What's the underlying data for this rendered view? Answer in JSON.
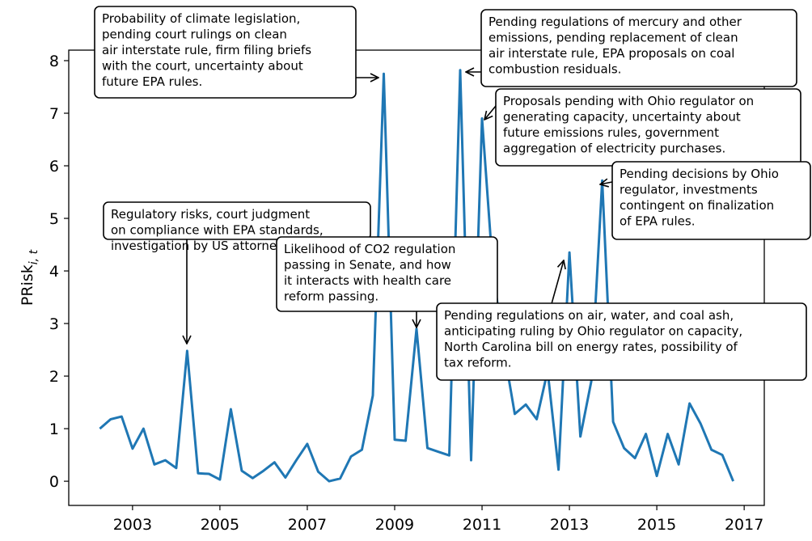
{
  "chart_data": {
    "type": "line",
    "y_label": "PRisk",
    "y_label_sub": "i, t",
    "xlim": [
      2001.54,
      2017.46
    ],
    "xticks": [
      2003,
      2005,
      2007,
      2009,
      2011,
      2013,
      2015,
      2017
    ],
    "ylim": [
      -0.46,
      8.2
    ],
    "yticks": [
      0,
      1,
      2,
      3,
      4,
      5,
      6,
      7,
      8
    ],
    "series": [
      {
        "color": "#1f77b4",
        "x": [
          2002.25,
          2002.5,
          2002.75,
          2003,
          2003.25,
          2003.5,
          2003.75,
          2004,
          2004.25,
          2004.5,
          2004.75,
          2005,
          2005.25,
          2005.5,
          2005.75,
          2006,
          2006.25,
          2006.5,
          2006.75,
          2007,
          2007.25,
          2007.5,
          2007.75,
          2008,
          2008.25,
          2008.5,
          2008.75,
          2009,
          2009.25,
          2009.5,
          2009.75,
          2010,
          2010.25,
          2010.5,
          2010.75,
          2011,
          2011.25,
          2011.5,
          2011.75,
          2012,
          2012.25,
          2012.5,
          2012.75,
          2013,
          2013.25,
          2013.5,
          2013.75,
          2014,
          2014.25,
          2014.5,
          2014.75,
          2015,
          2015.25,
          2015.5,
          2015.75,
          2016,
          2016.25,
          2016.5,
          2016.75
        ],
        "values": [
          1.0,
          1.18,
          1.23,
          0.62,
          1.0,
          0.32,
          0.4,
          0.25,
          2.48,
          0.15,
          0.14,
          0.03,
          1.37,
          0.2,
          0.06,
          0.2,
          0.36,
          0.07,
          0.4,
          0.71,
          0.18,
          0.0,
          0.05,
          0.47,
          0.6,
          1.63,
          7.75,
          0.79,
          0.77,
          2.9,
          0.63,
          0.56,
          0.49,
          7.82,
          0.4,
          6.9,
          4.0,
          2.5,
          1.28,
          1.46,
          1.18,
          2.1,
          0.22,
          4.35,
          0.85,
          1.9,
          5.72,
          1.13,
          0.63,
          0.44,
          0.9,
          0.1,
          0.9,
          0.32,
          1.48,
          1.1,
          0.6,
          0.5,
          0.0
        ]
      }
    ],
    "annotations": [
      {
        "lines": [
          "Probability of climate legislation,",
          "pending court rulings on clean",
          "air interstate rule, firm filing briefs",
          "with the court, uncertainty about",
          "future EPA rules."
        ]
      },
      {
        "lines": [
          "Pending regulations of mercury and other",
          "emissions, pending replacement of clean",
          "air interstate rule, EPA proposals on coal",
          "combustion residuals."
        ]
      },
      {
        "lines": [
          "Proposals pending with Ohio regulator on",
          "generating capacity, uncertainty about",
          "future emissions rules, government",
          "aggregation of electricity purchases."
        ]
      },
      {
        "lines": [
          "Pending decisions by Ohio",
          "regulator, investments",
          "contingent on finalization",
          "of EPA rules."
        ]
      },
      {
        "lines": [
          "Regulatory risks, court judgment",
          "on compliance with EPA standards,",
          "investigation by US attorney."
        ]
      },
      {
        "lines": [
          "Likelihood of CO2 regulation",
          "passing in Senate, and how",
          "it interacts with health care",
          "reform passing."
        ]
      },
      {
        "lines": [
          "Pending regulations on air, water, and coal ash,",
          "anticipating ruling by Ohio regulator on capacity,",
          "North Carolina bill on energy rates, possibility of",
          "tax reform."
        ]
      }
    ]
  }
}
